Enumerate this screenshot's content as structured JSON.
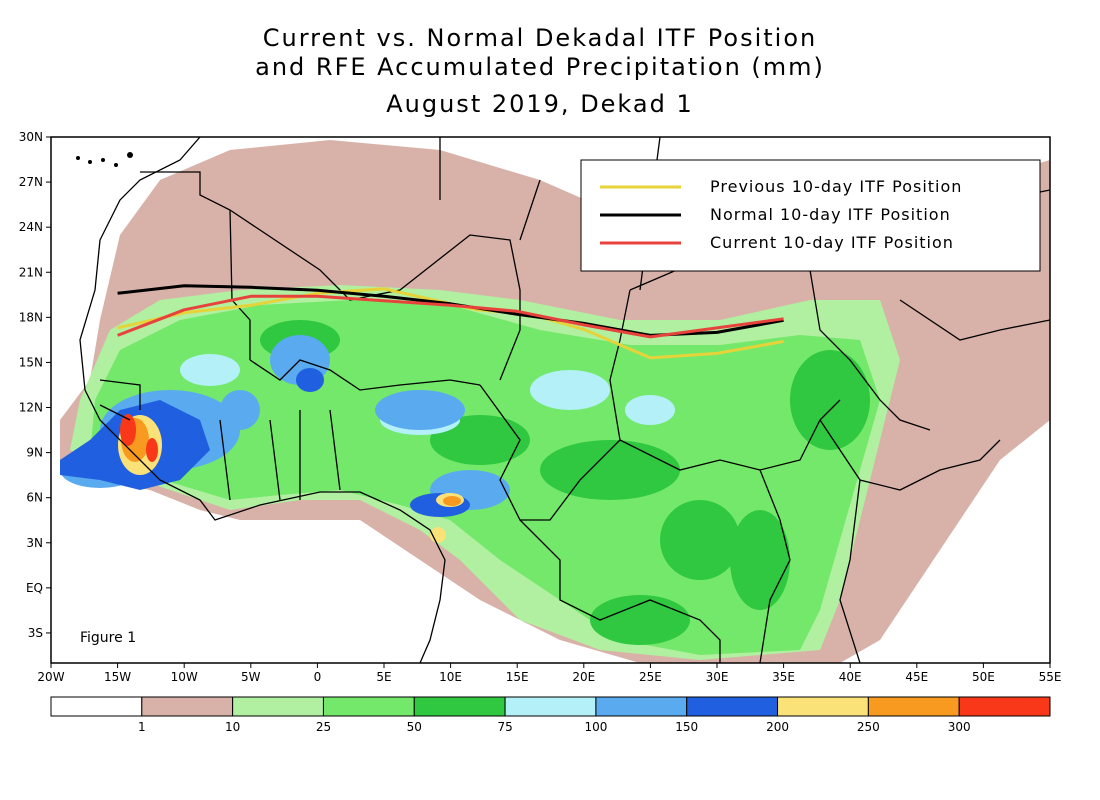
{
  "title": {
    "line1": "Current vs. Normal Dekadal ITF Position",
    "line2": "and RFE Accumulated Precipitation (mm)",
    "line3": "August 2019, Dekad 1"
  },
  "figure_label": "Figure 1",
  "legend": {
    "placement": "top-right",
    "entries": [
      {
        "label": "Previous 10-day ITF Position",
        "color": "#e6d33a"
      },
      {
        "label": "Normal 10-day ITF Position",
        "color": "#000000"
      },
      {
        "label": "Current 10-day ITF Position",
        "color": "#e8423c"
      }
    ]
  },
  "colors": {
    "frame": "#000000",
    "ocean": "#ffffff",
    "borders": "#000000"
  },
  "chart_data": {
    "type": "map",
    "extent": {
      "lon": [
        -20,
        55
      ],
      "lat": [
        -5,
        30
      ]
    },
    "x_ticks": [
      {
        "lon": -20,
        "label": "20W"
      },
      {
        "lon": -15,
        "label": "15W"
      },
      {
        "lon": -10,
        "label": "10W"
      },
      {
        "lon": -5,
        "label": "5W"
      },
      {
        "lon": 0,
        "label": "0"
      },
      {
        "lon": 5,
        "label": "5E"
      },
      {
        "lon": 10,
        "label": "10E"
      },
      {
        "lon": 15,
        "label": "15E"
      },
      {
        "lon": 20,
        "label": "20E"
      },
      {
        "lon": 25,
        "label": "25E"
      },
      {
        "lon": 30,
        "label": "30E"
      },
      {
        "lon": 35,
        "label": "35E"
      },
      {
        "lon": 40,
        "label": "40E"
      },
      {
        "lon": 45,
        "label": "45E"
      },
      {
        "lon": 50,
        "label": "50E"
      },
      {
        "lon": 55,
        "label": "55E"
      }
    ],
    "y_ticks": [
      {
        "lat": 30,
        "label": "30N"
      },
      {
        "lat": 27,
        "label": "27N"
      },
      {
        "lat": 24,
        "label": "24N"
      },
      {
        "lat": 21,
        "label": "21N"
      },
      {
        "lat": 18,
        "label": "18N"
      },
      {
        "lat": 15,
        "label": "15N"
      },
      {
        "lat": 12,
        "label": "12N"
      },
      {
        "lat": 9,
        "label": "9N"
      },
      {
        "lat": 6,
        "label": "6N"
      },
      {
        "lat": 3,
        "label": "3N"
      },
      {
        "lat": 0,
        "label": "EQ"
      },
      {
        "lat": -3,
        "label": "3S"
      }
    ],
    "series": [
      {
        "name": "Normal 10-day ITF Position",
        "color": "#000000",
        "points": [
          [
            -15,
            19.6
          ],
          [
            -10,
            20.1
          ],
          [
            -5,
            20.0
          ],
          [
            0,
            19.8
          ],
          [
            5,
            19.4
          ],
          [
            10,
            18.9
          ],
          [
            15,
            18.2
          ],
          [
            20,
            17.6
          ],
          [
            25,
            16.8
          ],
          [
            30,
            17.0
          ],
          [
            35,
            17.8
          ]
        ]
      },
      {
        "name": "Previous 10-day ITF Position",
        "color": "#e6d33a",
        "points": [
          [
            -15,
            17.3
          ],
          [
            -10,
            18.3
          ],
          [
            -5,
            18.8
          ],
          [
            0,
            19.6
          ],
          [
            5,
            19.9
          ],
          [
            8,
            19.3
          ],
          [
            12,
            18.5
          ],
          [
            16,
            18.2
          ],
          [
            20,
            17.2
          ],
          [
            25,
            15.3
          ],
          [
            30,
            15.6
          ],
          [
            35,
            16.4
          ]
        ]
      },
      {
        "name": "Current 10-day ITF Position",
        "color": "#e8423c",
        "points": [
          [
            -15,
            16.8
          ],
          [
            -10,
            18.5
          ],
          [
            -5,
            19.4
          ],
          [
            0,
            19.4
          ],
          [
            5,
            19.1
          ],
          [
            10,
            18.8
          ],
          [
            15,
            18.4
          ],
          [
            20,
            17.5
          ],
          [
            25,
            16.7
          ],
          [
            30,
            17.3
          ],
          [
            35,
            17.9
          ]
        ]
      }
    ],
    "colorbar": {
      "breaks": [
        "1",
        "10",
        "25",
        "50",
        "75",
        "100",
        "150",
        "200",
        "250",
        "300"
      ],
      "colors": [
        "#ffffff",
        "#d8b2a8",
        "#b0f0a0",
        "#74e86a",
        "#2fc840",
        "#b4f0f8",
        "#5aaaf0",
        "#2060e0",
        "#fbe278",
        "#f99a20",
        "#f83818"
      ]
    },
    "precip_regions": [
      {
        "category": 1,
        "lon": [
          -16,
          50
        ],
        "lat": [
          -5,
          27
        ],
        "desc": "dry fringe"
      },
      {
        "category": 4,
        "lon": [
          -15,
          35
        ],
        "lat": [
          3,
          17
        ]
      },
      {
        "category": 6,
        "lon": [
          -8,
          12
        ],
        "lat": [
          6,
          14
        ]
      },
      {
        "category": 7,
        "lon": [
          -17,
          -7
        ],
        "lat": [
          7,
          12
        ]
      },
      {
        "category": 10,
        "lon": [
          -14,
          -10
        ],
        "lat": [
          7,
          11
        ]
      }
    ]
  }
}
